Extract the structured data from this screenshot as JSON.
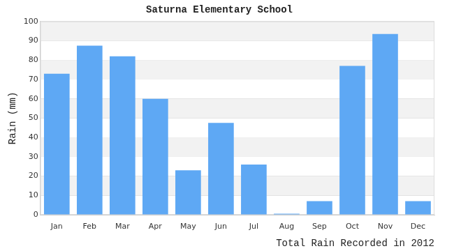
{
  "chart_data": {
    "type": "bar",
    "title": "Saturna Elementary School",
    "ylabel": "Rain (mm)",
    "xlabel": "Total Rain Recorded in 2012",
    "categories": [
      "Jan",
      "Feb",
      "Mar",
      "Apr",
      "May",
      "Jun",
      "Jul",
      "Aug",
      "Sep",
      "Oct",
      "Nov",
      "Dec"
    ],
    "values": [
      73,
      87.5,
      82,
      60,
      23,
      47.5,
      26,
      0.5,
      7,
      77,
      93.5,
      7
    ],
    "color": "#5ea8f4",
    "ylim": [
      0,
      100
    ],
    "yticks": [
      0,
      10,
      20,
      30,
      40,
      50,
      60,
      70,
      80,
      90,
      100
    ],
    "grid": true
  }
}
